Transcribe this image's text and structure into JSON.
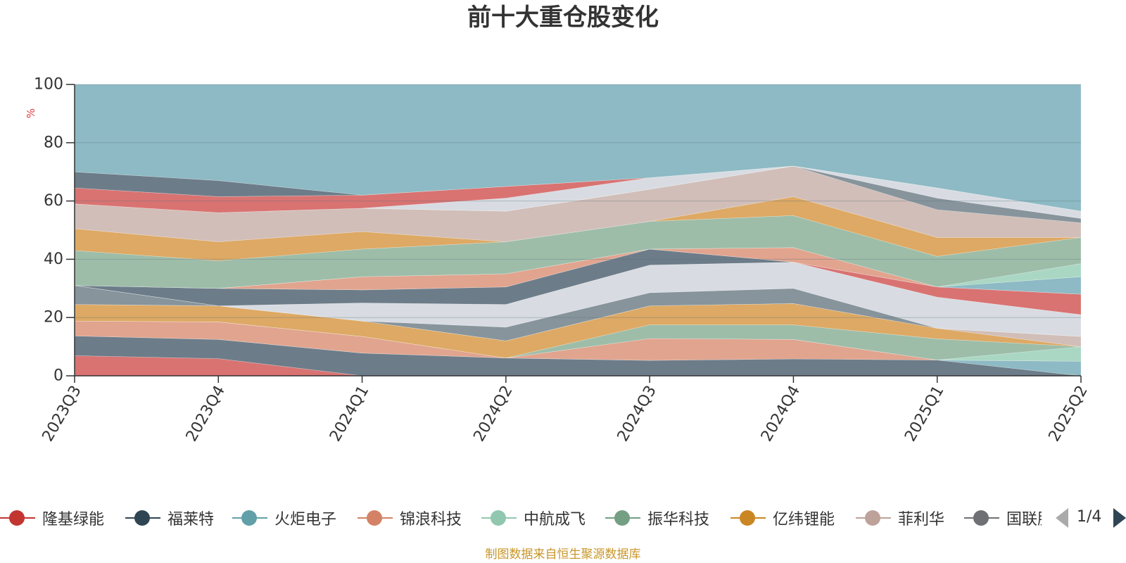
{
  "chart_data": {
    "type": "area",
    "title": "前十大重仓股变化",
    "ylabel": "%",
    "xlabel": "",
    "ylim": [
      0,
      100
    ],
    "y_ticks": [
      "0",
      "20",
      "40",
      "60",
      "80",
      "100"
    ],
    "grid": true,
    "stacked": true,
    "categories": [
      "2023Q3",
      "2023Q4",
      "2024Q1",
      "2024Q2",
      "2024Q3",
      "2024Q4",
      "2025Q1",
      "2025Q2"
    ],
    "layers": [
      {
        "top": [
          6.9,
          5.9,
          0,
          0,
          0,
          0,
          0,
          0
        ],
        "color": "#d87372"
      },
      {
        "top": [
          13.7,
          12.5,
          7.8,
          6.1,
          5.3,
          5.8,
          5.4,
          0
        ],
        "color": "#6d7c89"
      },
      {
        "top": [
          13.7,
          12.5,
          7.8,
          6.1,
          5.3,
          5.8,
          5.4,
          5.0
        ],
        "color": "#8dbac4"
      },
      {
        "top": [
          18.8,
          18.5,
          13.5,
          6.1,
          12.8,
          12.5,
          5.4,
          5.0
        ],
        "color": "#e1a48e"
      },
      {
        "top": [
          18.8,
          18.5,
          13.5,
          6.1,
          12.8,
          12.5,
          5.4,
          10.0
        ],
        "color": "#a9d7c3"
      },
      {
        "top": [
          18.8,
          18.5,
          13.5,
          6.1,
          17.5,
          17.5,
          12.7,
          10.0
        ],
        "color": "#9dbda9"
      },
      {
        "top": [
          24.5,
          24.0,
          18.8,
          12.0,
          24.0,
          24.8,
          16.3,
          10.0
        ],
        "color": "#dda964"
      },
      {
        "top": [
          24.5,
          24.0,
          18.8,
          12.0,
          24.0,
          24.8,
          16.3,
          13.5
        ],
        "color": "#d1beb8"
      },
      {
        "top": [
          31.0,
          24.0,
          18.8,
          16.7,
          28.5,
          30.0,
          16.3,
          13.5
        ],
        "color": "#87949c"
      },
      {
        "top": [
          31.0,
          24.0,
          25.0,
          24.5,
          38.0,
          39.0,
          27.0,
          21.0
        ],
        "color": "#d8dce2"
      },
      {
        "top": [
          31.0,
          24.0,
          25.0,
          24.5,
          38.0,
          39.0,
          30.5,
          28.0
        ],
        "color": "#d87372"
      },
      {
        "top": [
          31.0,
          30.0,
          29.5,
          30.5,
          43.5,
          39.0,
          30.5,
          28.0
        ],
        "color": "#6d7c89"
      },
      {
        "top": [
          31.0,
          30.0,
          29.5,
          30.5,
          43.5,
          39.0,
          30.5,
          34.0
        ],
        "color": "#8dbac4"
      },
      {
        "top": [
          31.0,
          30.0,
          34.0,
          35.0,
          43.5,
          44.0,
          30.5,
          34.0
        ],
        "color": "#e1a48e"
      },
      {
        "top": [
          31.0,
          30.0,
          34.0,
          35.0,
          43.5,
          44.0,
          30.5,
          38.5
        ],
        "color": "#a9d7c3"
      },
      {
        "top": [
          43.0,
          39.5,
          43.5,
          46.0,
          53.0,
          55.0,
          41.0,
          47.5
        ],
        "color": "#9dbda9"
      },
      {
        "top": [
          50.5,
          46.0,
          49.5,
          46.0,
          53.0,
          61.5,
          47.5,
          47.5
        ],
        "color": "#dda964"
      },
      {
        "top": [
          59.0,
          56.0,
          57.5,
          56.5,
          64.0,
          72.0,
          57.0,
          52.5
        ],
        "color": "#d1beb8"
      },
      {
        "top": [
          59.0,
          56.0,
          57.5,
          56.5,
          64.0,
          72.0,
          61.0,
          54.0
        ],
        "color": "#87949c"
      },
      {
        "top": [
          59.0,
          56.0,
          57.5,
          61.0,
          68.0,
          72.0,
          64.5,
          56.5
        ],
        "color": "#d8dce2"
      },
      {
        "top": [
          64.5,
          61.5,
          62.0,
          65.0,
          68.0,
          72.0,
          64.5,
          56.5
        ],
        "color": "#d87372"
      },
      {
        "top": [
          70.0,
          67.0,
          62.0,
          65.0,
          68.0,
          72.0,
          64.5,
          56.5
        ],
        "color": "#6d7c89"
      },
      {
        "top": [
          100,
          100,
          100,
          100,
          100,
          100,
          100,
          100
        ],
        "color": "#8dbac4"
      }
    ]
  },
  "legend": {
    "items": [
      {
        "name": "隆基绿能",
        "color": "#c23531"
      },
      {
        "name": "福莱特",
        "color": "#2f4554"
      },
      {
        "name": "火炬电子",
        "color": "#61a0a8"
      },
      {
        "name": "锦浪科技",
        "color": "#d48265"
      },
      {
        "name": "中航成飞",
        "color": "#91c7ae"
      },
      {
        "name": "振华科技",
        "color": "#749f83"
      },
      {
        "name": "亿纬锂能",
        "color": "#ca8622"
      },
      {
        "name": "菲利华",
        "color": "#bda29a"
      },
      {
        "name": "国联股份",
        "color": "#6e7074"
      }
    ],
    "pager": "1/4"
  },
  "source_note": "制图数据来自恒生聚源数据库"
}
